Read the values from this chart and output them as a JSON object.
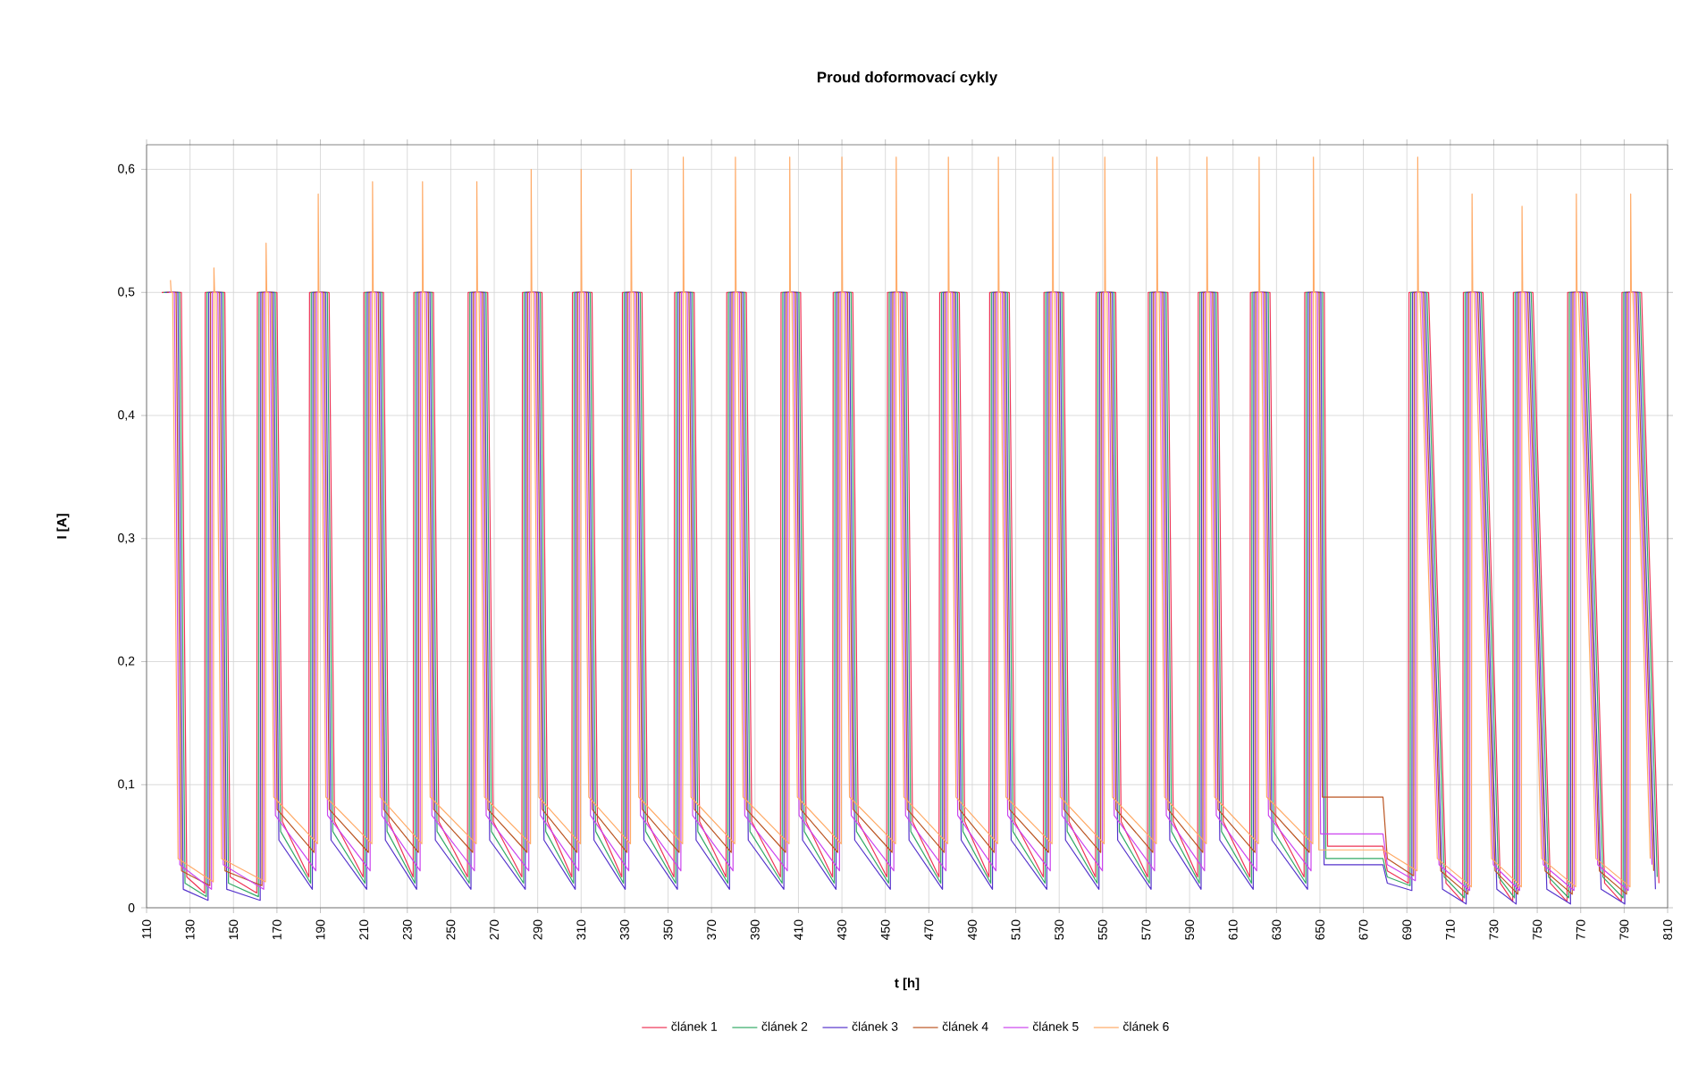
{
  "chart_data": {
    "type": "line",
    "title": "Proud doformovací cykly",
    "xlabel": "t [h]",
    "ylabel": "I [A]",
    "xlim": [
      110,
      810
    ],
    "xticks": [
      110,
      130,
      150,
      170,
      190,
      210,
      230,
      250,
      270,
      290,
      310,
      330,
      350,
      370,
      390,
      410,
      430,
      450,
      470,
      490,
      510,
      530,
      550,
      570,
      590,
      610,
      630,
      650,
      670,
      690,
      710,
      730,
      750,
      770,
      790,
      810
    ],
    "ylim": [
      0,
      0.62
    ],
    "yticks": [
      0,
      {
        "value": 0.1,
        "label": "0,1"
      },
      {
        "value": 0.2,
        "label": "0,2"
      },
      {
        "value": 0.3,
        "label": "0,3"
      },
      {
        "value": 0.4,
        "label": "0,4"
      },
      {
        "value": 0.5,
        "label": "0,5"
      },
      {
        "value": 0.6,
        "label": "0,6"
      }
    ],
    "grid": true,
    "legend": "bottom",
    "marker": "none",
    "line_style": "solid",
    "series": [
      {
        "name": "článek 1",
        "color": "#ee3355",
        "x": [
          117,
          126,
          128.5,
          136.7,
          137,
          146,
          148.5,
          160.7,
          161,
          170,
          172.5,
          184.7,
          185,
          194,
          196.5,
          209.7,
          210,
          219,
          221.5,
          232.7,
          233,
          242,
          244.5,
          257.7,
          258,
          267,
          269.5,
          282.7,
          283,
          292,
          294.5,
          305.7,
          306,
          315,
          317.5,
          328.7,
          329,
          338,
          340.5,
          352.7,
          353,
          362,
          364.5,
          376.7,
          377,
          386,
          388.5,
          401.7,
          402,
          411,
          413.5,
          425.7,
          426,
          435,
          437.5,
          450.7,
          451,
          460,
          462.5,
          474.7,
          475,
          484,
          486.5,
          497.7,
          498,
          507,
          509.5,
          522.7,
          523,
          532,
          534.5,
          546.7,
          547,
          556,
          558.5,
          570.7,
          571,
          580,
          582.5,
          593.7,
          594,
          603,
          605.5,
          617.7,
          618,
          627,
          629.5,
          642.7,
          643,
          652,
          653.5,
          679,
          681,
          690.7,
          691,
          700,
          708,
          715.7,
          716,
          725,
          733,
          738.7,
          739,
          748,
          756,
          763.7,
          764,
          773,
          781,
          788.7,
          789,
          798,
          806
        ],
        "values": [
          0.5,
          0.5,
          0.025,
          0.012,
          0.5,
          0.5,
          0.025,
          0.012,
          0.5,
          0.5,
          0.07,
          0.025,
          0.5,
          0.5,
          0.07,
          0.025,
          0.5,
          0.5,
          0.07,
          0.025,
          0.5,
          0.5,
          0.07,
          0.025,
          0.5,
          0.5,
          0.07,
          0.025,
          0.5,
          0.5,
          0.07,
          0.025,
          0.5,
          0.5,
          0.07,
          0.025,
          0.5,
          0.5,
          0.07,
          0.025,
          0.5,
          0.5,
          0.07,
          0.025,
          0.5,
          0.5,
          0.07,
          0.025,
          0.5,
          0.5,
          0.07,
          0.025,
          0.5,
          0.5,
          0.07,
          0.025,
          0.5,
          0.5,
          0.07,
          0.025,
          0.5,
          0.5,
          0.07,
          0.025,
          0.5,
          0.5,
          0.07,
          0.025,
          0.5,
          0.5,
          0.07,
          0.025,
          0.5,
          0.5,
          0.07,
          0.025,
          0.5,
          0.5,
          0.07,
          0.025,
          0.5,
          0.5,
          0.07,
          0.025,
          0.5,
          0.5,
          0.07,
          0.025,
          0.5,
          0.5,
          0.05,
          0.05,
          0.03,
          0.02,
          0.5,
          0.5,
          0.02,
          0.005,
          0.5,
          0.5,
          0.02,
          0.005,
          0.5,
          0.5,
          0.02,
          0.005,
          0.5,
          0.5,
          0.02,
          0.005,
          0.5,
          0.5,
          0.02
        ]
      },
      {
        "name": "článek 2",
        "color": "#33aa66",
        "x": [
          117.8,
          125.2,
          127.7,
          137.5,
          137.8,
          145.2,
          147.7,
          161.5,
          161.8,
          169.2,
          171.7,
          185.5,
          185.8,
          193.2,
          195.7,
          210.5,
          210.8,
          218.2,
          220.7,
          233.5,
          233.8,
          241.2,
          243.7,
          258.5,
          258.8,
          266.2,
          268.7,
          283.5,
          283.8,
          291.2,
          293.7,
          306.5,
          306.8,
          314.2,
          316.7,
          329.5,
          329.8,
          337.2,
          339.7,
          353.5,
          353.8,
          361.2,
          363.7,
          377.5,
          377.8,
          385.2,
          387.7,
          402.5,
          402.8,
          410.2,
          412.7,
          426.5,
          426.8,
          434.2,
          436.7,
          451.5,
          451.8,
          459.2,
          461.7,
          475.5,
          475.8,
          483.2,
          485.7,
          498.5,
          498.8,
          506.2,
          508.7,
          523.5,
          523.8,
          531.2,
          533.7,
          547.5,
          547.8,
          555.2,
          557.7,
          571.5,
          571.8,
          579.2,
          581.7,
          594.5,
          594.8,
          602.2,
          604.7,
          618.5,
          618.8,
          626.2,
          628.7,
          643.5,
          643.8,
          651.2,
          652.7,
          679,
          681,
          691.5,
          691.8,
          699.2,
          707.2,
          716.5,
          716.8,
          724.2,
          732.2,
          739.5,
          739.8,
          747.2,
          755.2,
          764.5,
          764.8,
          772.2,
          780.2,
          789.5,
          789.8,
          797.2,
          805.2
        ],
        "values": [
          0.5,
          0.5,
          0.02,
          0.009,
          0.5,
          0.5,
          0.02,
          0.009,
          0.5,
          0.5,
          0.062,
          0.02,
          0.5,
          0.5,
          0.062,
          0.02,
          0.5,
          0.5,
          0.062,
          0.02,
          0.5,
          0.5,
          0.062,
          0.02,
          0.5,
          0.5,
          0.062,
          0.02,
          0.5,
          0.5,
          0.062,
          0.02,
          0.5,
          0.5,
          0.062,
          0.02,
          0.5,
          0.5,
          0.062,
          0.02,
          0.5,
          0.5,
          0.062,
          0.02,
          0.5,
          0.5,
          0.062,
          0.02,
          0.5,
          0.5,
          0.062,
          0.02,
          0.5,
          0.5,
          0.062,
          0.02,
          0.5,
          0.5,
          0.062,
          0.02,
          0.5,
          0.5,
          0.062,
          0.02,
          0.5,
          0.5,
          0.062,
          0.02,
          0.5,
          0.5,
          0.062,
          0.02,
          0.5,
          0.5,
          0.062,
          0.02,
          0.5,
          0.5,
          0.062,
          0.02,
          0.5,
          0.5,
          0.062,
          0.02,
          0.5,
          0.5,
          0.062,
          0.02,
          0.5,
          0.5,
          0.04,
          0.04,
          0.025,
          0.018,
          0.5,
          0.5,
          0.025,
          0.008,
          0.5,
          0.5,
          0.025,
          0.008,
          0.5,
          0.5,
          0.025,
          0.008,
          0.5,
          0.5,
          0.025,
          0.008,
          0.5,
          0.5,
          0.025
        ]
      },
      {
        "name": "článek 3",
        "color": "#5533cc",
        "x": [
          118.6,
          124.4,
          126.9,
          138.3,
          138.6,
          144.4,
          146.9,
          162.3,
          162.6,
          168.4,
          170.9,
          186.3,
          186.6,
          192.4,
          194.9,
          211.3,
          211.6,
          217.4,
          219.9,
          234.3,
          234.6,
          240.4,
          242.9,
          259.3,
          259.6,
          265.4,
          267.9,
          284.3,
          284.6,
          290.4,
          292.9,
          307.3,
          307.6,
          313.4,
          315.9,
          330.3,
          330.6,
          336.4,
          338.9,
          354.3,
          354.6,
          360.4,
          362.9,
          378.3,
          378.6,
          384.4,
          386.9,
          403.3,
          403.6,
          409.4,
          411.9,
          427.3,
          427.6,
          433.4,
          435.9,
          452.3,
          452.6,
          458.4,
          460.9,
          476.3,
          476.6,
          482.4,
          484.9,
          499.3,
          499.6,
          505.4,
          507.9,
          524.3,
          524.6,
          530.4,
          532.9,
          548.3,
          548.6,
          554.4,
          556.9,
          572.3,
          572.6,
          578.4,
          580.9,
          595.3,
          595.6,
          601.4,
          603.9,
          619.3,
          619.6,
          625.4,
          627.9,
          644.3,
          644.6,
          650.4,
          651.9,
          679,
          681,
          692.3,
          692.6,
          698.4,
          706.4,
          717.3,
          717.6,
          723.4,
          731.4,
          740.3,
          740.6,
          746.4,
          754.4,
          765.3,
          765.6,
          771.4,
          779.4,
          790.3,
          790.6,
          796.4,
          804.4
        ],
        "values": [
          0.5,
          0.5,
          0.015,
          0.006,
          0.5,
          0.5,
          0.015,
          0.006,
          0.5,
          0.5,
          0.055,
          0.015,
          0.5,
          0.5,
          0.055,
          0.015,
          0.5,
          0.5,
          0.055,
          0.015,
          0.5,
          0.5,
          0.055,
          0.015,
          0.5,
          0.5,
          0.055,
          0.015,
          0.5,
          0.5,
          0.055,
          0.015,
          0.5,
          0.5,
          0.055,
          0.015,
          0.5,
          0.5,
          0.055,
          0.015,
          0.5,
          0.5,
          0.055,
          0.015,
          0.5,
          0.5,
          0.055,
          0.015,
          0.5,
          0.5,
          0.055,
          0.015,
          0.5,
          0.5,
          0.055,
          0.015,
          0.5,
          0.5,
          0.055,
          0.015,
          0.5,
          0.5,
          0.055,
          0.015,
          0.5,
          0.5,
          0.055,
          0.015,
          0.5,
          0.5,
          0.055,
          0.015,
          0.5,
          0.5,
          0.055,
          0.015,
          0.5,
          0.5,
          0.055,
          0.015,
          0.5,
          0.5,
          0.055,
          0.015,
          0.5,
          0.5,
          0.055,
          0.015,
          0.5,
          0.5,
          0.035,
          0.035,
          0.02,
          0.014,
          0.5,
          0.5,
          0.015,
          0.003,
          0.5,
          0.5,
          0.015,
          0.003,
          0.5,
          0.5,
          0.015,
          0.003,
          0.5,
          0.5,
          0.015,
          0.003,
          0.5,
          0.5,
          0.015
        ]
      },
      {
        "name": "článek 4",
        "color": "#bb5522",
        "x": [
          119.4,
          123.6,
          126.1,
          139.1,
          139.4,
          143.6,
          146.1,
          163.1,
          163.4,
          167.6,
          170.1,
          187.1,
          187.4,
          191.6,
          194.1,
          212.1,
          212.4,
          216.6,
          219.1,
          235.1,
          235.4,
          239.6,
          242.1,
          260.1,
          260.4,
          264.6,
          267.1,
          285.1,
          285.4,
          289.6,
          292.1,
          308.1,
          308.4,
          312.6,
          315.1,
          331.1,
          331.4,
          335.6,
          338.1,
          355.1,
          355.4,
          359.6,
          362.1,
          379.1,
          379.4,
          383.6,
          386.1,
          404.1,
          404.4,
          408.6,
          411.1,
          428.1,
          428.4,
          432.6,
          435.1,
          453.1,
          453.4,
          457.6,
          460.1,
          477.1,
          477.4,
          481.6,
          484.1,
          500.1,
          500.4,
          504.6,
          507.1,
          525.1,
          525.4,
          529.6,
          532.1,
          549.1,
          549.4,
          553.6,
          556.1,
          573.1,
          573.4,
          577.6,
          580.1,
          596.1,
          596.4,
          600.6,
          603.1,
          620.1,
          620.4,
          624.6,
          627.1,
          645.1,
          645.4,
          649.6,
          651.1,
          679,
          681,
          693.1,
          693.4,
          697.6,
          705.6,
          718.1,
          718.4,
          722.6,
          730.6,
          741.1,
          741.4,
          745.6,
          753.6,
          766.1,
          766.4,
          770.6,
          778.6,
          791.1,
          791.4,
          795.6,
          803.6
        ],
        "values": [
          0.5,
          0.5,
          0.03,
          0.018,
          0.5,
          0.5,
          0.03,
          0.018,
          0.5,
          0.5,
          0.08,
          0.045,
          0.5,
          0.5,
          0.08,
          0.045,
          0.5,
          0.5,
          0.08,
          0.045,
          0.5,
          0.5,
          0.08,
          0.045,
          0.5,
          0.5,
          0.08,
          0.045,
          0.5,
          0.5,
          0.08,
          0.045,
          0.5,
          0.5,
          0.08,
          0.045,
          0.5,
          0.5,
          0.08,
          0.045,
          0.5,
          0.5,
          0.08,
          0.045,
          0.5,
          0.5,
          0.08,
          0.045,
          0.5,
          0.5,
          0.08,
          0.045,
          0.5,
          0.5,
          0.08,
          0.045,
          0.5,
          0.5,
          0.08,
          0.045,
          0.5,
          0.5,
          0.08,
          0.045,
          0.5,
          0.5,
          0.08,
          0.045,
          0.5,
          0.5,
          0.08,
          0.045,
          0.5,
          0.5,
          0.08,
          0.045,
          0.5,
          0.5,
          0.08,
          0.045,
          0.5,
          0.5,
          0.08,
          0.045,
          0.5,
          0.5,
          0.08,
          0.045,
          0.5,
          0.5,
          0.09,
          0.09,
          0.04,
          0.026,
          0.5,
          0.5,
          0.03,
          0.011,
          0.5,
          0.5,
          0.03,
          0.011,
          0.5,
          0.5,
          0.03,
          0.011,
          0.5,
          0.5,
          0.03,
          0.011,
          0.5,
          0.5,
          0.03
        ]
      },
      {
        "name": "článek 5",
        "color": "#cc44ee",
        "x": [
          120.2,
          122.8,
          125.3,
          139.9,
          140.2,
          142.8,
          145.3,
          163.9,
          164.2,
          166.8,
          169.3,
          187.9,
          188.2,
          190.8,
          193.3,
          212.9,
          213.2,
          215.8,
          218.3,
          235.9,
          236.2,
          238.8,
          241.3,
          260.9,
          261.2,
          263.8,
          266.3,
          285.9,
          286.2,
          288.8,
          291.3,
          308.9,
          309.2,
          311.8,
          314.3,
          331.9,
          332.2,
          334.8,
          337.3,
          355.9,
          356.2,
          358.8,
          361.3,
          379.9,
          380.2,
          382.8,
          385.3,
          404.9,
          405.2,
          407.8,
          410.3,
          428.9,
          429.2,
          431.8,
          434.3,
          453.9,
          454.2,
          456.8,
          459.3,
          477.9,
          478.2,
          480.8,
          483.3,
          500.9,
          501.2,
          503.8,
          506.3,
          525.9,
          526.2,
          528.8,
          531.3,
          549.9,
          550.2,
          552.8,
          555.3,
          573.9,
          574.2,
          576.8,
          579.3,
          596.9,
          597.2,
          599.8,
          602.3,
          620.9,
          621.2,
          623.8,
          626.3,
          645.9,
          646.2,
          648.8,
          650.3,
          679,
          681,
          693.9,
          694.2,
          696.8,
          704.8,
          718.9,
          719.2,
          721.8,
          729.8,
          741.9,
          742.2,
          744.8,
          752.8,
          766.9,
          767.2,
          769.8,
          777.8,
          791.9,
          792.2,
          794.8,
          802.8
        ],
        "values": [
          0.5,
          0.5,
          0.035,
          0.015,
          0.5,
          0.5,
          0.035,
          0.015,
          0.5,
          0.5,
          0.075,
          0.03,
          0.5,
          0.5,
          0.075,
          0.03,
          0.5,
          0.5,
          0.075,
          0.03,
          0.5,
          0.5,
          0.075,
          0.03,
          0.5,
          0.5,
          0.075,
          0.03,
          0.5,
          0.5,
          0.075,
          0.03,
          0.5,
          0.5,
          0.075,
          0.03,
          0.5,
          0.5,
          0.075,
          0.03,
          0.5,
          0.5,
          0.075,
          0.03,
          0.5,
          0.5,
          0.075,
          0.03,
          0.5,
          0.5,
          0.075,
          0.03,
          0.5,
          0.5,
          0.075,
          0.03,
          0.5,
          0.5,
          0.075,
          0.03,
          0.5,
          0.5,
          0.075,
          0.03,
          0.5,
          0.5,
          0.075,
          0.03,
          0.5,
          0.5,
          0.075,
          0.03,
          0.5,
          0.5,
          0.075,
          0.03,
          0.5,
          0.5,
          0.075,
          0.03,
          0.5,
          0.5,
          0.075,
          0.03,
          0.5,
          0.5,
          0.075,
          0.03,
          0.5,
          0.5,
          0.06,
          0.06,
          0.035,
          0.022,
          0.5,
          0.5,
          0.035,
          0.014,
          0.5,
          0.5,
          0.035,
          0.014,
          0.5,
          0.5,
          0.035,
          0.014,
          0.5,
          0.5,
          0.035,
          0.014,
          0.5,
          0.5,
          0.035
        ]
      },
      {
        "name": "článek 6",
        "color": "#ffaa66",
        "x": [
          121,
          121.3,
          122,
          124.5,
          140.7,
          141,
          141.3,
          142,
          144.5,
          164.7,
          165,
          165.3,
          166,
          168.5,
          188.7,
          189,
          189.3,
          190,
          192.5,
          213.7,
          214,
          214.3,
          215,
          217.5,
          236.7,
          237,
          237.3,
          238,
          240.5,
          261.7,
          262,
          262.3,
          263,
          265.5,
          286.7,
          287,
          287.3,
          288,
          290.5,
          309.7,
          310,
          310.3,
          311,
          313.5,
          332.7,
          333,
          333.3,
          334,
          336.5,
          356.7,
          357,
          357.3,
          358,
          360.5,
          380.7,
          381,
          381.3,
          382,
          384.5,
          405.7,
          406,
          406.3,
          407,
          409.5,
          429.7,
          430,
          430.3,
          431,
          433.5,
          454.7,
          455,
          455.3,
          456,
          458.5,
          478.7,
          479,
          479.3,
          480,
          482.5,
          501.7,
          502,
          502.3,
          503,
          505.5,
          526.7,
          527,
          527.3,
          528,
          530.5,
          550.7,
          551,
          551.3,
          552,
          554.5,
          574.7,
          575,
          575.3,
          576,
          578.5,
          597.7,
          598,
          598.3,
          599,
          601.5,
          621.7,
          622,
          622.3,
          623,
          625.5,
          646.7,
          647,
          647.3,
          648,
          649.5,
          679,
          681,
          694.7,
          695,
          695.3,
          696,
          704,
          719.7,
          720,
          720.3,
          721,
          729,
          742.7,
          743,
          743.3,
          744,
          752,
          767.7,
          768,
          768.3,
          769,
          777,
          792.7,
          793,
          793.3,
          794,
          802
        ],
        "values": [
          0.51,
          0.5,
          0.5,
          0.04,
          0.021,
          0.52,
          0.5,
          0.5,
          0.04,
          0.021,
          0.54,
          0.5,
          0.5,
          0.09,
          0.052,
          0.58,
          0.5,
          0.5,
          0.09,
          0.052,
          0.59,
          0.5,
          0.5,
          0.09,
          0.052,
          0.59,
          0.5,
          0.5,
          0.09,
          0.052,
          0.59,
          0.5,
          0.5,
          0.09,
          0.052,
          0.6,
          0.5,
          0.5,
          0.09,
          0.052,
          0.6,
          0.5,
          0.5,
          0.09,
          0.052,
          0.6,
          0.5,
          0.5,
          0.09,
          0.052,
          0.61,
          0.5,
          0.5,
          0.09,
          0.052,
          0.61,
          0.5,
          0.5,
          0.09,
          0.052,
          0.61,
          0.5,
          0.5,
          0.09,
          0.052,
          0.61,
          0.5,
          0.5,
          0.09,
          0.052,
          0.61,
          0.5,
          0.5,
          0.09,
          0.052,
          0.61,
          0.5,
          0.5,
          0.09,
          0.052,
          0.61,
          0.5,
          0.5,
          0.09,
          0.052,
          0.61,
          0.5,
          0.5,
          0.09,
          0.052,
          0.61,
          0.5,
          0.5,
          0.09,
          0.052,
          0.61,
          0.5,
          0.5,
          0.09,
          0.052,
          0.61,
          0.5,
          0.5,
          0.09,
          0.052,
          0.61,
          0.5,
          0.5,
          0.09,
          0.052,
          0.61,
          0.5,
          0.5,
          0.047,
          0.047,
          0.045,
          0.03,
          0.61,
          0.5,
          0.5,
          0.04,
          0.017,
          0.58,
          0.5,
          0.5,
          0.04,
          0.017,
          0.57,
          0.5,
          0.5,
          0.04,
          0.017,
          0.58,
          0.5,
          0.5,
          0.04,
          0.017,
          0.58,
          0.5,
          0.5,
          0.04
        ]
      }
    ]
  }
}
